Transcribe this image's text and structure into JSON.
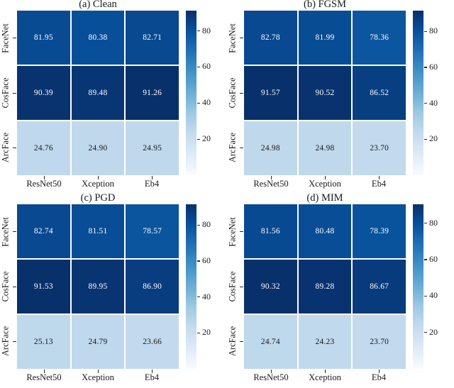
{
  "figure": {
    "colormap_name": "Blues",
    "colormap_stops": [
      "#f7fbff",
      "#deebf7",
      "#c6dbef",
      "#9ecae1",
      "#6baed6",
      "#4292c6",
      "#2171b5",
      "#08519c",
      "#08306b"
    ],
    "annotation_text_light": "#ffffff",
    "annotation_text_dark": "#1a1a1a",
    "background": "#ffffff"
  },
  "chart_data": [
    {
      "type": "heatmap",
      "title": "(a) Clean",
      "rows": [
        "FaceNet",
        "CosFace",
        "ArcFace"
      ],
      "columns": [
        "ResNet50",
        "Xception",
        "Eb4"
      ],
      "values": [
        [
          81.95,
          80.38,
          82.71
        ],
        [
          90.39,
          89.48,
          91.26
        ],
        [
          24.76,
          24.9,
          24.95
        ]
      ],
      "vmin": 0,
      "vmax": 91.26,
      "colorbar_ticks": [
        20,
        40,
        60,
        80
      ],
      "colormap": "Blues",
      "legend_position": "right"
    },
    {
      "type": "heatmap",
      "title": "(b) FGSM",
      "rows": [
        "FaceNet",
        "CosFace",
        "ArcFace"
      ],
      "columns": [
        "ResNet50",
        "Xception",
        "Eb4"
      ],
      "values": [
        [
          82.78,
          81.99,
          78.36
        ],
        [
          91.57,
          90.52,
          86.52
        ],
        [
          24.98,
          24.98,
          23.7
        ]
      ],
      "vmin": 0,
      "vmax": 91.57,
      "colorbar_ticks": [
        20,
        40,
        60,
        80
      ],
      "colormap": "Blues",
      "legend_position": "right"
    },
    {
      "type": "heatmap",
      "title": "(c) PGD",
      "rows": [
        "FaceNet",
        "CosFace",
        "ArcFace"
      ],
      "columns": [
        "ResNet50",
        "Xception",
        "Eb4"
      ],
      "values": [
        [
          82.74,
          81.51,
          78.57
        ],
        [
          91.53,
          89.95,
          86.9
        ],
        [
          25.13,
          24.79,
          23.66
        ]
      ],
      "vmin": 0,
      "vmax": 91.53,
      "colorbar_ticks": [
        20,
        40,
        60,
        80
      ],
      "colormap": "Blues",
      "legend_position": "right"
    },
    {
      "type": "heatmap",
      "title": "(d) MIM",
      "rows": [
        "FaceNet",
        "CosFace",
        "ArcFace"
      ],
      "columns": [
        "ResNet50",
        "Xception",
        "Eb4"
      ],
      "values": [
        [
          81.56,
          80.48,
          78.39
        ],
        [
          90.32,
          89.28,
          86.67
        ],
        [
          24.74,
          24.23,
          23.7
        ]
      ],
      "vmin": 0,
      "vmax": 90.32,
      "colorbar_ticks": [
        20,
        40,
        60,
        80
      ],
      "colormap": "Blues",
      "legend_position": "right"
    }
  ]
}
